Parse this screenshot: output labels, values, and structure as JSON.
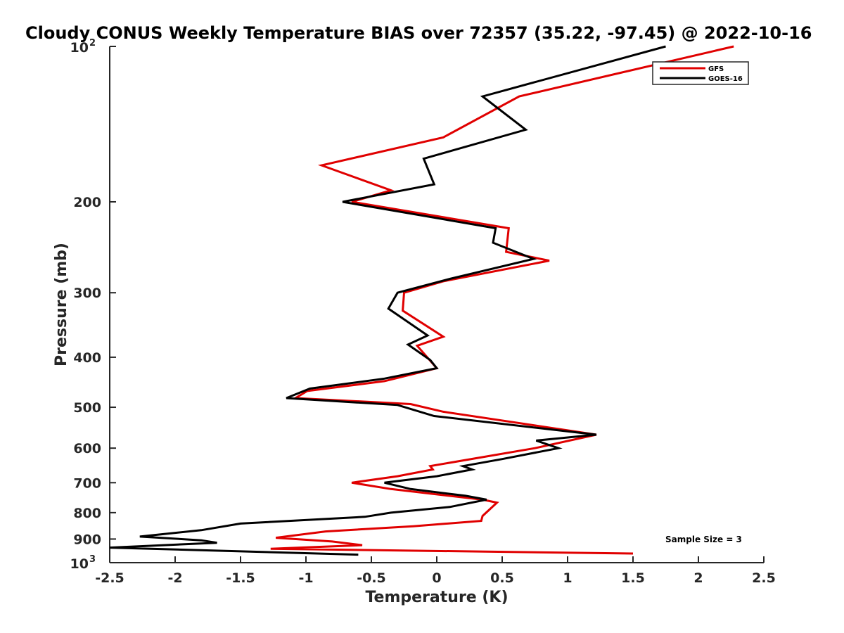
{
  "chart_data": {
    "type": "line",
    "title": "Cloudy CONUS Weekly Temperature BIAS over 72357 (35.22, -97.45) @ 2022-10-16",
    "xlabel": "Temperature (K)",
    "ylabel": "Pressure (mb)",
    "xlim": [
      -2.5,
      2.5
    ],
    "ylim": [
      100,
      1000
    ],
    "yscale": "log",
    "y_reversed": true,
    "grid": false,
    "legend_position": "top-right",
    "xticks": [
      "-2.5",
      "-2",
      "-1.5",
      "-1",
      "-0.5",
      "0",
      "0.5",
      "1",
      "1.5",
      "2",
      "2.5"
    ],
    "xtick_values": [
      -2.5,
      -2,
      -1.5,
      -1,
      -0.5,
      0,
      0.5,
      1,
      1.5,
      2,
      2.5
    ],
    "yticks": [
      {
        "value": 100,
        "base": "10",
        "exp": "2"
      },
      {
        "value": 200,
        "label": "200"
      },
      {
        "value": 300,
        "label": "300"
      },
      {
        "value": 400,
        "label": "400"
      },
      {
        "value": 500,
        "label": "500"
      },
      {
        "value": 600,
        "label": "600"
      },
      {
        "value": 700,
        "label": "700"
      },
      {
        "value": 800,
        "label": "800"
      },
      {
        "value": 900,
        "label": "900"
      },
      {
        "value": 1000,
        "base": "10",
        "exp": "3"
      }
    ],
    "annotation": "Sample Size = 3",
    "series": [
      {
        "name": "GFS",
        "color": "#e00000",
        "points": [
          [
            2.27,
            100
          ],
          [
            0.63,
            125
          ],
          [
            0.05,
            150
          ],
          [
            -0.88,
            170
          ],
          [
            -0.35,
            190
          ],
          [
            -0.65,
            200
          ],
          [
            0.55,
            225
          ],
          [
            0.53,
            250
          ],
          [
            0.86,
            260
          ],
          [
            0.05,
            285
          ],
          [
            -0.25,
            300
          ],
          [
            -0.26,
            325
          ],
          [
            0.05,
            365
          ],
          [
            -0.15,
            380
          ],
          [
            0.0,
            420
          ],
          [
            -0.4,
            445
          ],
          [
            -0.99,
            465
          ],
          [
            -1.08,
            480
          ],
          [
            -0.2,
            493
          ],
          [
            0.05,
            510
          ],
          [
            1.22,
            565
          ],
          [
            0.75,
            600
          ],
          [
            -0.05,
            650
          ],
          [
            -0.03,
            660
          ],
          [
            -0.3,
            680
          ],
          [
            -0.65,
            700
          ],
          [
            -0.35,
            720
          ],
          [
            0.35,
            755
          ],
          [
            0.46,
            765
          ],
          [
            0.35,
            812
          ],
          [
            0.34,
            830
          ],
          [
            -0.18,
            850
          ],
          [
            -0.85,
            870
          ],
          [
            -1.23,
            895
          ],
          [
            -0.8,
            910
          ],
          [
            -0.57,
            925
          ],
          [
            -1.27,
            940
          ],
          [
            1.5,
            960
          ]
        ]
      },
      {
        "name": "GOES-16",
        "color": "#000000",
        "points": [
          [
            1.75,
            100
          ],
          [
            0.35,
            125
          ],
          [
            0.68,
            145
          ],
          [
            -0.1,
            165
          ],
          [
            -0.02,
            185
          ],
          [
            -0.72,
            200
          ],
          [
            0.45,
            225
          ],
          [
            0.43,
            240
          ],
          [
            0.74,
            258
          ],
          [
            0.1,
            282
          ],
          [
            -0.3,
            300
          ],
          [
            -0.37,
            322
          ],
          [
            -0.07,
            363
          ],
          [
            -0.22,
            378
          ],
          [
            -0.05,
            405
          ],
          [
            0.0,
            420
          ],
          [
            -0.4,
            440
          ],
          [
            -0.97,
            460
          ],
          [
            -1.15,
            480
          ],
          [
            -0.3,
            495
          ],
          [
            -0.02,
            520
          ],
          [
            1.22,
            565
          ],
          [
            0.76,
            580
          ],
          [
            0.93,
            600
          ],
          [
            0.5,
            630
          ],
          [
            0.2,
            650
          ],
          [
            0.27,
            660
          ],
          [
            0.0,
            680
          ],
          [
            -0.4,
            700
          ],
          [
            -0.2,
            720
          ],
          [
            0.22,
            742
          ],
          [
            0.38,
            755
          ],
          [
            0.1,
            780
          ],
          [
            -0.35,
            800
          ],
          [
            -0.55,
            815
          ],
          [
            -1.5,
            840
          ],
          [
            -1.8,
            865
          ],
          [
            -2.27,
            890
          ],
          [
            -1.8,
            905
          ],
          [
            -1.68,
            915
          ],
          [
            -2.5,
            935
          ],
          [
            -0.6,
            965
          ]
        ]
      }
    ]
  }
}
